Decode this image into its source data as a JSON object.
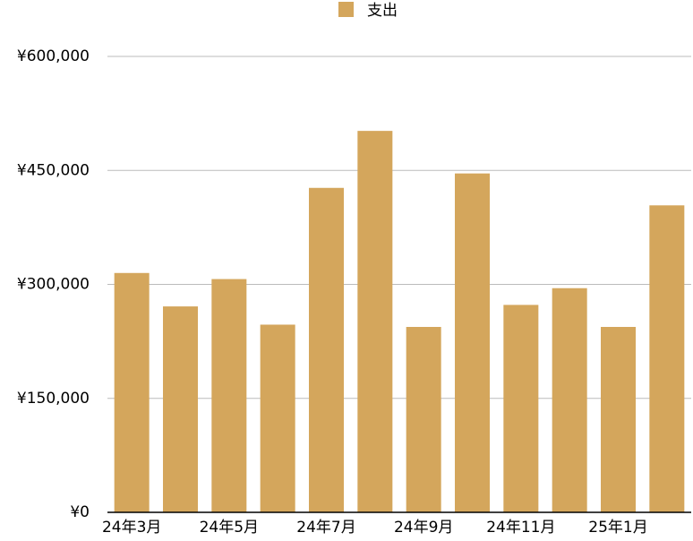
{
  "chart_data": {
    "type": "bar",
    "categories": [
      "24年3月",
      null,
      "24年5月",
      null,
      "24年7月",
      null,
      "24年9月",
      null,
      "24年11月",
      null,
      "25年1月",
      null
    ],
    "series": [
      {
        "name": "支出",
        "color": "#d4a65c",
        "values": [
          315000,
          271000,
          307000,
          247000,
          427000,
          502000,
          244000,
          446000,
          273000,
          295000,
          244000,
          404000
        ]
      }
    ],
    "ylim": [
      0,
      600000
    ],
    "yticks": [
      {
        "value": 0,
        "label": "¥0"
      },
      {
        "value": 150000,
        "label": "¥150,000"
      },
      {
        "value": 300000,
        "label": "¥300,000"
      },
      {
        "value": 450000,
        "label": "¥450,000"
      },
      {
        "value": 600000,
        "label": "¥600,000"
      }
    ],
    "grid": true,
    "legend": "top"
  }
}
